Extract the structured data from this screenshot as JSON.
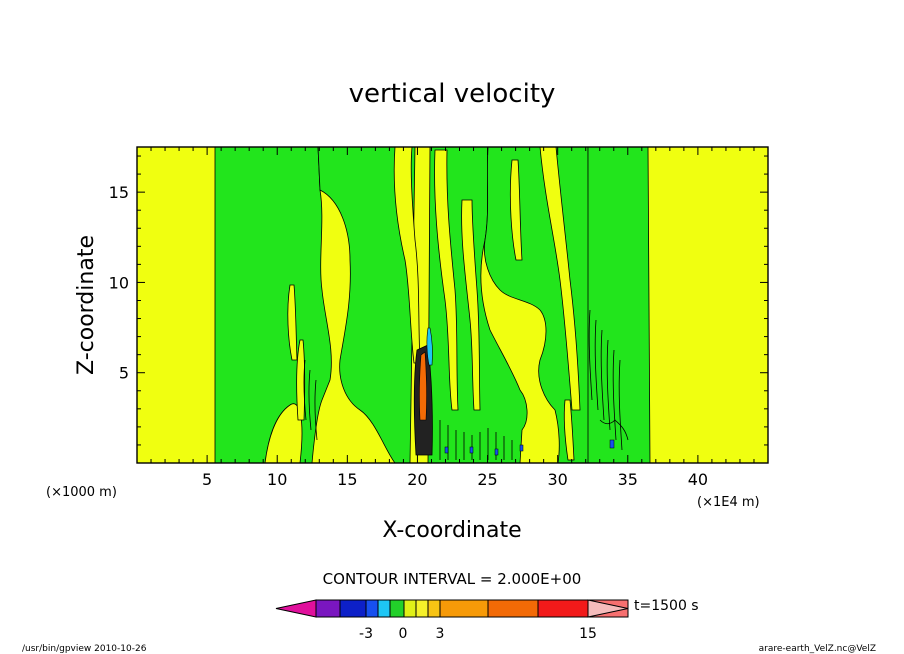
{
  "chart_data": {
    "type": "heatmap",
    "title": "vertical velocity",
    "xlabel": "X-coordinate",
    "ylabel": "Z-coordinate",
    "x_unit_left": "(×1000 m)",
    "x_unit_right": "(×1E4 m)",
    "xlim": [
      0,
      45
    ],
    "ylim": [
      0,
      17.5
    ],
    "x_ticks": [
      5,
      10,
      15,
      20,
      25,
      30,
      35,
      40
    ],
    "y_ticks": [
      5,
      10,
      15
    ],
    "contour_interval_label": "CONTOUR INTERVAL = 2.000E+00",
    "time_label": "t=1500 s",
    "colorbar": {
      "colors": [
        "#e0109c",
        "#7a16c0",
        "#0d20c8",
        "#1750f0",
        "#1ec6f4",
        "#22d02a",
        "#e0f018",
        "#f6f12a",
        "#f8c414",
        "#f79a08",
        "#f36a06",
        "#f21a1a",
        "#f77070",
        "#f5bcbc"
      ],
      "tick_labels": [
        "-3",
        "0",
        "3",
        "15"
      ]
    },
    "regions": [
      {
        "value": "positive",
        "color": "#f0ff10",
        "note": "background"
      },
      {
        "value": "negative",
        "color": "#22e51c"
      },
      {
        "value": "strong",
        "color": "#f36a06"
      }
    ]
  },
  "footer": {
    "left": "/usr/bin/gpview   2010-10-26",
    "right": "arare-earth_VelZ.nc@VelZ"
  }
}
